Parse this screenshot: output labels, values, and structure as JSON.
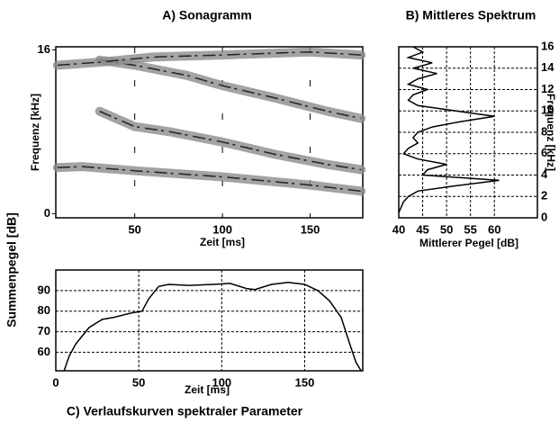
{
  "chart_data": [
    {
      "type": "spectrogram",
      "title": "A) Sonagramm",
      "xlabel": "Zeit [ms]",
      "ylabel": "Frequenz [kHz]",
      "xlim": [
        5,
        180
      ],
      "ylim": [
        -0.4,
        16.3
      ],
      "xticks": [
        50,
        100,
        150
      ],
      "yticks": [
        0,
        16
      ],
      "grid": true,
      "color": "#8c8c8c",
      "series": [
        {
          "x": [
            6,
            20,
            50,
            100,
            150,
            179
          ],
          "values": [
            4.5,
            4.6,
            4.2,
            3.6,
            2.8,
            2.2
          ]
        },
        {
          "x": [
            30,
            50,
            70,
            100,
            130,
            160,
            179
          ],
          "values": [
            10,
            8.5,
            8,
            7,
            5.8,
            4.8,
            4.3
          ]
        },
        {
          "x": [
            30,
            50,
            80,
            100,
            130,
            160,
            179
          ],
          "values": [
            15,
            14.5,
            13.5,
            12.5,
            11.3,
            10,
            9.3
          ]
        },
        {
          "x": [
            6,
            30,
            60,
            100,
            150,
            179
          ],
          "values": [
            14.5,
            14.8,
            15.3,
            15.5,
            15.8,
            15.5
          ]
        }
      ]
    },
    {
      "type": "line",
      "orientation": "horizontal",
      "y_axis_side": "right",
      "title": "B) Mittleres Spektrum",
      "xlabel": "Mittlerer Pegel [dB]",
      "ylabel": "Frequenz [kHz]",
      "xlim": [
        40,
        69
      ],
      "ylim": [
        0,
        16
      ],
      "xticks": [
        40,
        45,
        50,
        55,
        60
      ],
      "yticks": [
        0,
        2,
        4,
        6,
        8,
        10,
        12,
        14,
        16
      ],
      "grid": true,
      "color": "#000000",
      "y": [
        16,
        15.5,
        15,
        14.5,
        14,
        13.5,
        13,
        12.5,
        12,
        11.5,
        11,
        10.5,
        10,
        9.5,
        9,
        8.5,
        8,
        7.5,
        7,
        6.5,
        6,
        5.5,
        5,
        4.5,
        4,
        3.5,
        3,
        2.5,
        2,
        1.5,
        1,
        0.5
      ],
      "values": [
        43,
        45,
        42,
        47,
        43,
        48,
        44,
        42,
        46,
        43,
        42,
        44,
        52,
        60,
        53,
        47,
        44,
        43,
        44,
        42,
        41,
        44,
        50,
        46,
        45,
        61,
        52,
        44,
        42,
        41,
        40.5,
        40
      ]
    },
    {
      "type": "line",
      "title": "C) Verlaufskurven spektraler Parameter",
      "title_position": "bottom",
      "xlabel": "Zeit [ms]",
      "ylabel": "Summenpegel [dB]",
      "xlim": [
        0,
        185
      ],
      "ylim": [
        51,
        100
      ],
      "xticks": [
        0,
        50,
        100,
        150
      ],
      "yticks": [
        60,
        70,
        80,
        90
      ],
      "grid": true,
      "color": "#000000",
      "x": [
        5,
        8,
        12,
        20,
        28,
        35,
        45,
        52,
        56,
        62,
        68,
        80,
        95,
        105,
        115,
        120,
        130,
        140,
        150,
        158,
        165,
        172,
        178,
        181,
        184
      ],
      "values": [
        51,
        58,
        64,
        72,
        76,
        77,
        79,
        80,
        86,
        92,
        93,
        92.5,
        93,
        93.5,
        91,
        90.5,
        93,
        94,
        93,
        90,
        85,
        77,
        62,
        55,
        51
      ]
    }
  ]
}
